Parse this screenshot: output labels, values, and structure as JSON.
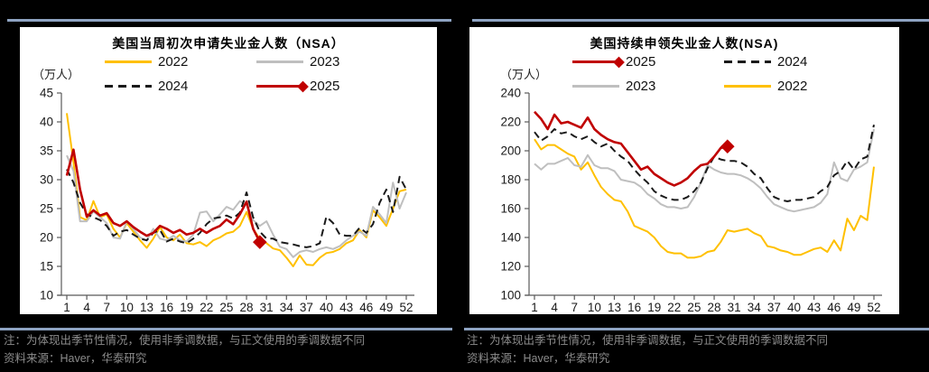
{
  "page": {
    "background_color": "#000000",
    "rule_color": "#8EA3C2"
  },
  "footer": {
    "note": "注：为体现出季节性情况，使用非季调数据，与正文使用的季调数据不同",
    "source": "资料来源：Haver，华泰研究"
  },
  "charts": [
    {
      "title": "美国当周初次申请失业金人数（NSA）",
      "unit_label": "（万人）",
      "legend_order": [
        "2022",
        "2023",
        "2024",
        "2025"
      ],
      "chart_data": {
        "type": "line",
        "xlim": [
          1,
          52
        ],
        "xticks": [
          1,
          4,
          7,
          10,
          13,
          16,
          19,
          22,
          25,
          28,
          31,
          34,
          37,
          40,
          43,
          46,
          49,
          52
        ],
        "ylim": [
          10,
          45
        ],
        "yticks": [
          10,
          15,
          20,
          25,
          30,
          35,
          40,
          45
        ],
        "grid": false,
        "legend_position": "top",
        "series": [
          {
            "name": "2022",
            "color": "#FFC000",
            "dash": false,
            "values": [
              41.5,
              33.0,
              23.5,
              23.0,
              26.3,
              23.5,
              24.0,
              21.5,
              20.0,
              22.5,
              21.0,
              19.5,
              18.2,
              19.8,
              21.8,
              20.0,
              19.5,
              20.5,
              19.0,
              18.8,
              19.2,
              18.5,
              19.5,
              20.0,
              20.7,
              21.0,
              22.0,
              24.4,
              21.5,
              19.7,
              19.0,
              18.1,
              17.8,
              16.5,
              15.0,
              16.9,
              15.3,
              15.2,
              16.5,
              17.3,
              17.5,
              18.0,
              19.0,
              19.5,
              21.3,
              20.0,
              24.7,
              23.5,
              22.0,
              25.0,
              28.0,
              28.3
            ]
          },
          {
            "name": "2023",
            "color": "#BFBFBF",
            "dash": false,
            "values": [
              34.2,
              31.5,
              22.8,
              22.8,
              24.5,
              23.5,
              22.5,
              20.0,
              19.8,
              22.8,
              21.5,
              20.0,
              19.5,
              21.5,
              19.8,
              19.5,
              20.3,
              19.5,
              19.3,
              20.5,
              24.3,
              24.5,
              22.8,
              24.0,
              25.3,
              24.8,
              26.3,
              25.6,
              23.0,
              22.0,
              22.8,
              20.5,
              18.4,
              18.0,
              16.6,
              17.5,
              17.8,
              17.5,
              18.0,
              18.3,
              18.0,
              18.5,
              19.5,
              20.3,
              21.0,
              20.3,
              25.3,
              24.0,
              22.5,
              29.5,
              25.0,
              27.8
            ]
          },
          {
            "name": "2024",
            "color": "#1A1A1A",
            "dash": true,
            "values": [
              31.8,
              29.5,
              26.0,
              24.0,
              23.5,
              23.0,
              22.0,
              20.3,
              21.0,
              21.3,
              20.5,
              19.8,
              19.5,
              20.8,
              21.3,
              19.3,
              19.8,
              19.3,
              19.0,
              19.8,
              20.8,
              22.3,
              23.3,
              23.5,
              23.8,
              23.3,
              24.3,
              27.8,
              23.5,
              21.0,
              19.8,
              19.8,
              19.2,
              19.0,
              18.8,
              18.5,
              18.3,
              18.5,
              19.0,
              23.6,
              22.5,
              20.5,
              20.3,
              20.3,
              21.7,
              20.8,
              22.3,
              26.0,
              28.3,
              24.4,
              30.5,
              28.3
            ]
          },
          {
            "name": "2025",
            "color": "#C00000",
            "dash": false,
            "end_marker": "diamond",
            "values": [
              30.7,
              35.2,
              28.3,
              23.6,
              24.7,
              23.8,
              24.2,
              22.5,
              22.0,
              22.8,
              21.8,
              21.0,
              20.3,
              20.8,
              22.0,
              21.5,
              20.8,
              21.3,
              20.5,
              20.8,
              21.5,
              20.8,
              21.5,
              22.0,
              23.1,
              22.3,
              24.0,
              26.2,
              21.5,
              19.2
            ]
          }
        ]
      }
    },
    {
      "title": "美国持续申领失业金人数(NSA)",
      "unit_label": "（万人）",
      "legend_order": [
        "2025",
        "2024",
        "2023",
        "2022"
      ],
      "chart_data": {
        "type": "line",
        "xlim": [
          1,
          52
        ],
        "xticks": [
          1,
          4,
          7,
          10,
          13,
          16,
          19,
          22,
          25,
          28,
          31,
          34,
          37,
          40,
          43,
          46,
          49,
          52
        ],
        "ylim": [
          100,
          240
        ],
        "yticks": [
          100,
          120,
          140,
          160,
          180,
          200,
          220,
          240
        ],
        "grid": false,
        "legend_position": "top",
        "series": [
          {
            "name": "2022",
            "color": "#FFC000",
            "dash": false,
            "values": [
              208,
              201,
              204,
              204,
              201,
              198,
              196,
              187,
              192,
              183,
              175,
              170,
              166,
              165,
              158,
              148,
              146,
              144,
              140,
              134,
              130,
              129,
              129,
              126,
              126,
              127,
              130,
              131,
              137,
              145,
              144,
              145,
              146,
              143,
              141,
              134,
              133,
              131,
              130,
              128,
              128,
              130,
              132,
              133,
              130,
              138,
              131,
              153,
              145,
              155,
              152,
              189
            ]
          },
          {
            "name": "2023",
            "color": "#BFBFBF",
            "dash": false,
            "values": [
              191,
              187,
              191,
              191,
              193,
              195,
              190,
              189,
              197,
              190,
              188,
              188,
              186,
              180,
              179,
              178,
              175,
              170,
              167,
              163,
              161,
              161,
              160,
              161,
              168,
              178,
              190,
              187,
              185,
              184,
              184,
              183,
              181,
              178,
              174,
              168,
              163,
              161,
              159,
              158,
              159,
              160,
              161,
              164,
              170,
              192,
              181,
              179,
              187,
              189,
              192,
              215
            ]
          },
          {
            "name": "2024",
            "color": "#1A1A1A",
            "dash": true,
            "values": [
              213,
              207,
              210,
              215,
              212,
              213,
              210,
              208,
              210,
              206,
              203,
              205,
              200,
              196,
              193,
              187,
              182,
              178,
              172,
              169,
              167,
              166,
              166,
              168,
              172,
              178,
              188,
              196,
              194,
              193,
              193,
              192,
              189,
              184,
              181,
              174,
              168,
              166,
              165,
              166,
              166,
              167,
              168,
              172,
              175,
              183,
              186,
              193,
              187,
              194,
              196,
              218
            ]
          },
          {
            "name": "2025",
            "color": "#C00000",
            "dash": false,
            "end_marker": "diamond",
            "values": [
              227,
              222,
              215,
              225,
              219,
              220,
              218,
              216,
              223,
              215,
              211,
              208,
              206,
              205,
              199,
              193,
              187,
              189,
              184,
              181,
              178,
              176,
              178,
              181,
              186,
              190,
              191,
              196,
              202,
              203
            ]
          }
        ]
      }
    }
  ]
}
